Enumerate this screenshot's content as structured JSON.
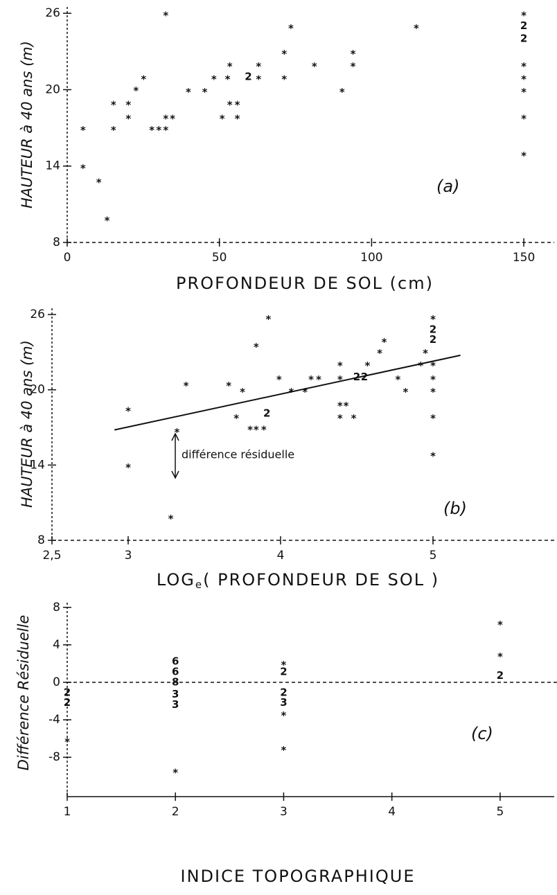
{
  "chart_data": [
    {
      "type": "scatter",
      "ylabel": "HAUTEUR à 40 ans (m)",
      "xlabel": "PROFONDEUR DE SOL (cm)",
      "annotation": "(a)",
      "x": [
        5.2,
        5.2,
        10.4,
        13.1,
        15.2,
        15.2,
        20.1,
        20.1,
        22.6,
        25.1,
        27.8,
        30.1,
        32.4,
        32.4,
        32.4,
        34.6,
        39.8,
        45.2,
        48.2,
        52.7,
        50.9,
        53.4,
        53.4,
        55.9,
        55.9,
        59.5,
        62.9,
        62.9,
        71.3,
        71.3,
        73.5,
        81.2,
        90.3,
        93.9,
        93.9,
        114.7,
        150,
        150,
        150,
        150,
        150,
        150,
        150,
        150
      ],
      "y": [
        17.0,
        14.0,
        12.9,
        9.9,
        17.0,
        19.0,
        19.0,
        17.9,
        20.1,
        21.0,
        17.0,
        17.0,
        17.0,
        26.0,
        17.9,
        17.9,
        20.0,
        20.0,
        21.0,
        21.0,
        17.9,
        22.0,
        19.0,
        19.0,
        17.9,
        21.0,
        22.0,
        21.0,
        23.0,
        21.0,
        25.0,
        22.0,
        20.0,
        23.0,
        22.0,
        25.0,
        26.0,
        25.0,
        24.0,
        22.0,
        21.0,
        20.0,
        17.9,
        15.0
      ],
      "symbols": [
        "*",
        "*",
        "*",
        "*",
        "*",
        "*",
        "*",
        "*",
        "*",
        "*",
        "*",
        "*",
        "*",
        "*",
        "*",
        "*",
        "*",
        "*",
        "*",
        "*",
        "*",
        "*",
        "*",
        "*",
        "*",
        "2",
        "*",
        "*",
        "*",
        "*",
        "*",
        "*",
        "*",
        "*",
        "*",
        "*",
        "*",
        "2",
        "2",
        "*",
        "*",
        "*",
        "*",
        "*"
      ],
      "xlim": [
        0,
        160
      ],
      "ylim": [
        8,
        26.5
      ],
      "xticks": [
        0,
        50,
        100,
        150
      ],
      "yticks": [
        8,
        14,
        20,
        26
      ]
    },
    {
      "type": "scatter",
      "ylabel": "HAUTEUR à 40 ans (m)",
      "xlabel": [
        "LOG",
        "e",
        "( PROFONDEUR DE SOL )"
      ],
      "annotation": "(b)",
      "note": "différence résiduelle",
      "x": [
        3.0,
        3.0,
        3.28,
        3.32,
        3.38,
        3.66,
        3.71,
        3.75,
        3.8,
        3.84,
        3.89,
        3.84,
        3.92,
        3.91,
        3.99,
        4.07,
        4.16,
        4.2,
        4.25,
        4.39,
        4.39,
        4.39,
        4.43,
        4.39,
        4.48,
        4.5,
        4.55,
        4.57,
        4.65,
        4.68,
        4.77,
        4.82,
        4.92,
        4.95,
        5.0,
        5.0,
        5.0,
        5.0,
        5.0,
        5.0,
        5.0,
        5.0
      ],
      "y": [
        18.5,
        14.0,
        9.9,
        16.8,
        20.5,
        20.5,
        17.9,
        20.0,
        17.0,
        17.0,
        17.0,
        23.6,
        25.8,
        18.1,
        21.0,
        20.0,
        20.0,
        21.0,
        21.0,
        22.1,
        21.0,
        18.9,
        18.9,
        17.9,
        17.9,
        21.0,
        21.0,
        22.1,
        23.1,
        24.0,
        21.0,
        20.0,
        22.1,
        23.1,
        25.8,
        24.8,
        24.0,
        22.1,
        21.0,
        20.0,
        17.9,
        14.9
      ],
      "symbols": [
        "*",
        "*",
        "*",
        "*",
        "*",
        "*",
        "*",
        "*",
        "*",
        "*",
        "*",
        "*",
        "*",
        "2",
        "*",
        "*",
        "*",
        "*",
        "*",
        "*",
        "*",
        "*",
        "*",
        "*",
        "*",
        "2",
        "2",
        "*",
        "*",
        "*",
        "*",
        "*",
        "*",
        "*",
        "*",
        "2",
        "2",
        "*",
        "*",
        "*",
        "*",
        "*"
      ],
      "fit": {
        "x": [
          2.91,
          5.18
        ],
        "y": [
          16.8,
          22.75
        ]
      },
      "xlim": [
        2.5,
        5.8
      ],
      "ylim": [
        8,
        26.5
      ],
      "xticks": [
        {
          "value": 2.5,
          "label": "2,5"
        },
        3,
        4,
        5
      ],
      "yticks": [
        8,
        14,
        20,
        26
      ]
    },
    {
      "type": "scatter",
      "ylabel": "Différence Résiduelle",
      "xlabel": "INDICE TOPOGRAPHIQUE",
      "annotation": "(c)",
      "zero_line": true,
      "x": [
        1,
        1,
        1,
        2,
        2,
        2,
        2,
        2,
        2,
        3,
        3,
        3,
        3,
        3,
        3,
        5,
        5,
        5
      ],
      "y": [
        -1.1,
        -2.2,
        -6.1,
        2.2,
        1.1,
        0,
        -1.3,
        -2.4,
        -9.4,
        2.1,
        1.1,
        -1.1,
        -2.2,
        -3.3,
        -7.0,
        6.4,
        3.0,
        0.7
      ],
      "symbols": [
        "2",
        "2",
        "*",
        "6",
        "6",
        "8",
        "3",
        "3",
        "*",
        "*",
        "2",
        "2",
        "3",
        "*",
        "*",
        "*",
        "*",
        "2"
      ],
      "xlim": [
        1,
        5.5
      ],
      "ylim": [
        -12.2,
        8.5
      ],
      "xticks": [
        1,
        2,
        3,
        4,
        5
      ],
      "yticks": [
        8,
        4,
        0,
        -4,
        -8
      ]
    }
  ]
}
